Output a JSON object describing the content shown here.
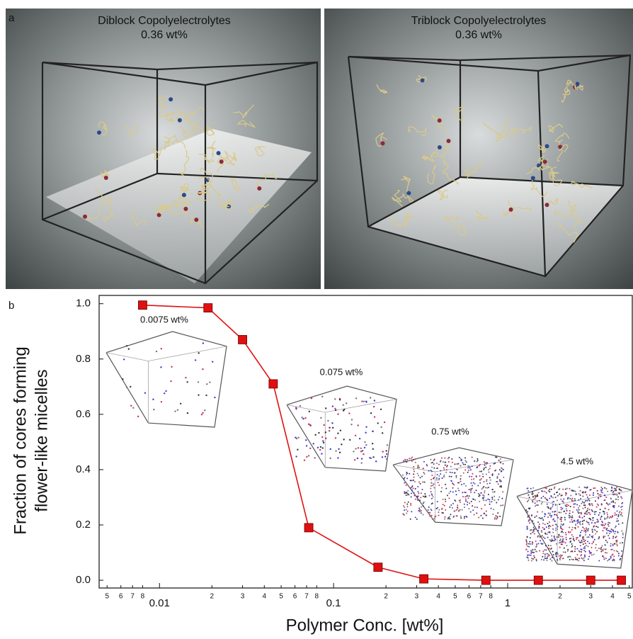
{
  "panel_a": {
    "label": "a",
    "left": {
      "title": "Diblock Copolyelectrolytes",
      "subtitle": "0.36 wt%"
    },
    "right": {
      "title": "Triblock Copolyelectrolytes",
      "subtitle": "0.36 wt%"
    }
  },
  "chart_data": {
    "type": "line",
    "panel_label": "b",
    "x_label": "Polymer Conc. [wt%]",
    "y_label": [
      "Fraction of cores forming",
      "flower-like micelles"
    ],
    "log_x": true,
    "x": [
      0.008,
      0.019,
      0.03,
      0.045,
      0.072,
      0.18,
      0.33,
      0.75,
      1.5,
      3,
      4.5
    ],
    "series": [
      {
        "color": "#e01010",
        "values": [
          0.995,
          0.985,
          0.87,
          0.71,
          0.19,
          0.047,
          0.005,
          0,
          0,
          0,
          0
        ]
      }
    ],
    "xlim": [
      0.0045,
      5.2
    ],
    "ylim": [
      -0.028,
      1.03
    ],
    "yticks": [
      {
        "value": 0,
        "label": "0.0"
      },
      {
        "value": 0.2,
        "label": "0.2"
      },
      {
        "value": 0.4,
        "label": "0.4"
      },
      {
        "value": 0.6,
        "label": "0.6"
      },
      {
        "value": 0.8,
        "label": "0.8"
      },
      {
        "value": 1,
        "label": "1.0"
      }
    ],
    "xticks": [
      {
        "value": 0.005,
        "label": "5"
      },
      {
        "value": 0.006,
        "label": "6"
      },
      {
        "value": 0.007,
        "label": "7"
      },
      {
        "value": 0.008,
        "label": "8"
      },
      0.01,
      {
        "value": 0.02,
        "label": "2"
      },
      {
        "value": 0.03,
        "label": "3"
      },
      {
        "value": 0.04,
        "label": "4"
      },
      {
        "value": 0.05,
        "label": "5"
      },
      {
        "value": 0.06,
        "label": "6"
      },
      {
        "value": 0.07,
        "label": "7"
      },
      {
        "value": 0.08,
        "label": "8"
      },
      0.1,
      {
        "value": 0.2,
        "label": "2"
      },
      {
        "value": 0.3,
        "label": "3"
      },
      {
        "value": 0.4,
        "label": "4"
      },
      {
        "value": 0.5,
        "label": "5"
      },
      {
        "value": 0.6,
        "label": "6"
      },
      {
        "value": 0.7,
        "label": "7"
      },
      {
        "value": 0.8,
        "label": "8"
      },
      1,
      {
        "value": 2,
        "label": "2"
      },
      {
        "value": 3,
        "label": "3"
      },
      {
        "value": 4,
        "label": "4"
      },
      {
        "value": 5,
        "label": "5"
      }
    ],
    "annotations": [
      "0.0075 wt%",
      "0.075 wt%",
      "0.75 wt%",
      "4.5 wt%"
    ]
  }
}
